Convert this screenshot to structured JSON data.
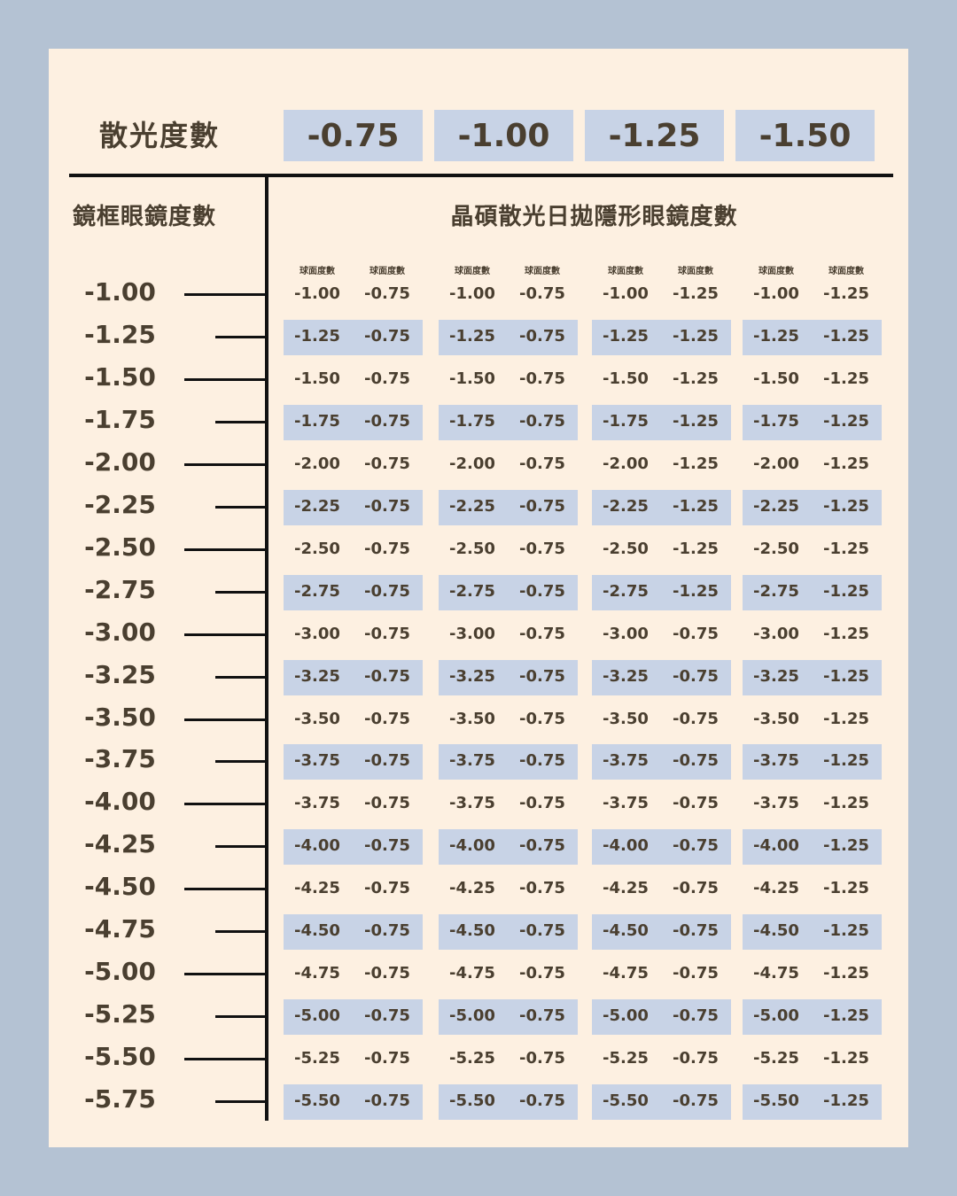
{
  "header": {
    "label": "散光度數",
    "cylinders": [
      "-0.75",
      "-1.00",
      "-1.25",
      "-1.50"
    ]
  },
  "left_heading": "鏡框眼鏡度數",
  "right_heading": "晶碩散光日拋隱形眼鏡度數",
  "sub_label": "球面度數",
  "colors": {
    "background": "#b4c2d3",
    "card": "#fdf0e1",
    "highlight": "#c8d3e6",
    "text": "#4a3f30"
  },
  "rows": [
    {
      "frame": "-1.00",
      "contacts": [
        [
          "-1.00",
          "-0.75"
        ],
        [
          "-1.00",
          "-0.75"
        ],
        [
          "-1.00",
          "-1.25"
        ],
        [
          "-1.00",
          "-1.25"
        ]
      ]
    },
    {
      "frame": "-1.25",
      "contacts": [
        [
          "-1.25",
          "-0.75"
        ],
        [
          "-1.25",
          "-0.75"
        ],
        [
          "-1.25",
          "-1.25"
        ],
        [
          "-1.25",
          "-1.25"
        ]
      ]
    },
    {
      "frame": "-1.50",
      "contacts": [
        [
          "-1.50",
          "-0.75"
        ],
        [
          "-1.50",
          "-0.75"
        ],
        [
          "-1.50",
          "-1.25"
        ],
        [
          "-1.50",
          "-1.25"
        ]
      ]
    },
    {
      "frame": "-1.75",
      "contacts": [
        [
          "-1.75",
          "-0.75"
        ],
        [
          "-1.75",
          "-0.75"
        ],
        [
          "-1.75",
          "-1.25"
        ],
        [
          "-1.75",
          "-1.25"
        ]
      ]
    },
    {
      "frame": "-2.00",
      "contacts": [
        [
          "-2.00",
          "-0.75"
        ],
        [
          "-2.00",
          "-0.75"
        ],
        [
          "-2.00",
          "-1.25"
        ],
        [
          "-2.00",
          "-1.25"
        ]
      ]
    },
    {
      "frame": "-2.25",
      "contacts": [
        [
          "-2.25",
          "-0.75"
        ],
        [
          "-2.25",
          "-0.75"
        ],
        [
          "-2.25",
          "-1.25"
        ],
        [
          "-2.25",
          "-1.25"
        ]
      ]
    },
    {
      "frame": "-2.50",
      "contacts": [
        [
          "-2.50",
          "-0.75"
        ],
        [
          "-2.50",
          "-0.75"
        ],
        [
          "-2.50",
          "-1.25"
        ],
        [
          "-2.50",
          "-1.25"
        ]
      ]
    },
    {
      "frame": "-2.75",
      "contacts": [
        [
          "-2.75",
          "-0.75"
        ],
        [
          "-2.75",
          "-0.75"
        ],
        [
          "-2.75",
          "-1.25"
        ],
        [
          "-2.75",
          "-1.25"
        ]
      ]
    },
    {
      "frame": "-3.00",
      "contacts": [
        [
          "-3.00",
          "-0.75"
        ],
        [
          "-3.00",
          "-0.75"
        ],
        [
          "-3.00",
          "-0.75"
        ],
        [
          "-3.00",
          "-1.25"
        ]
      ]
    },
    {
      "frame": "-3.25",
      "contacts": [
        [
          "-3.25",
          "-0.75"
        ],
        [
          "-3.25",
          "-0.75"
        ],
        [
          "-3.25",
          "-0.75"
        ],
        [
          "-3.25",
          "-1.25"
        ]
      ]
    },
    {
      "frame": "-3.50",
      "contacts": [
        [
          "-3.50",
          "-0.75"
        ],
        [
          "-3.50",
          "-0.75"
        ],
        [
          "-3.50",
          "-0.75"
        ],
        [
          "-3.50",
          "-1.25"
        ]
      ]
    },
    {
      "frame": "-3.75",
      "contacts": [
        [
          "-3.75",
          "-0.75"
        ],
        [
          "-3.75",
          "-0.75"
        ],
        [
          "-3.75",
          "-0.75"
        ],
        [
          "-3.75",
          "-1.25"
        ]
      ]
    },
    {
      "frame": "-4.00",
      "contacts": [
        [
          "-3.75",
          "-0.75"
        ],
        [
          "-3.75",
          "-0.75"
        ],
        [
          "-3.75",
          "-0.75"
        ],
        [
          "-3.75",
          "-1.25"
        ]
      ]
    },
    {
      "frame": "-4.25",
      "contacts": [
        [
          "-4.00",
          "-0.75"
        ],
        [
          "-4.00",
          "-0.75"
        ],
        [
          "-4.00",
          "-0.75"
        ],
        [
          "-4.00",
          "-1.25"
        ]
      ]
    },
    {
      "frame": "-4.50",
      "contacts": [
        [
          "-4.25",
          "-0.75"
        ],
        [
          "-4.25",
          "-0.75"
        ],
        [
          "-4.25",
          "-0.75"
        ],
        [
          "-4.25",
          "-1.25"
        ]
      ]
    },
    {
      "frame": "-4.75",
      "contacts": [
        [
          "-4.50",
          "-0.75"
        ],
        [
          "-4.50",
          "-0.75"
        ],
        [
          "-4.50",
          "-0.75"
        ],
        [
          "-4.50",
          "-1.25"
        ]
      ]
    },
    {
      "frame": "-5.00",
      "contacts": [
        [
          "-4.75",
          "-0.75"
        ],
        [
          "-4.75",
          "-0.75"
        ],
        [
          "-4.75",
          "-0.75"
        ],
        [
          "-4.75",
          "-1.25"
        ]
      ]
    },
    {
      "frame": "-5.25",
      "contacts": [
        [
          "-5.00",
          "-0.75"
        ],
        [
          "-5.00",
          "-0.75"
        ],
        [
          "-5.00",
          "-0.75"
        ],
        [
          "-5.00",
          "-1.25"
        ]
      ]
    },
    {
      "frame": "-5.50",
      "contacts": [
        [
          "-5.25",
          "-0.75"
        ],
        [
          "-5.25",
          "-0.75"
        ],
        [
          "-5.25",
          "-0.75"
        ],
        [
          "-5.25",
          "-1.25"
        ]
      ]
    },
    {
      "frame": "-5.75",
      "contacts": [
        [
          "-5.50",
          "-0.75"
        ],
        [
          "-5.50",
          "-0.75"
        ],
        [
          "-5.50",
          "-0.75"
        ],
        [
          "-5.50",
          "-1.25"
        ]
      ]
    }
  ]
}
